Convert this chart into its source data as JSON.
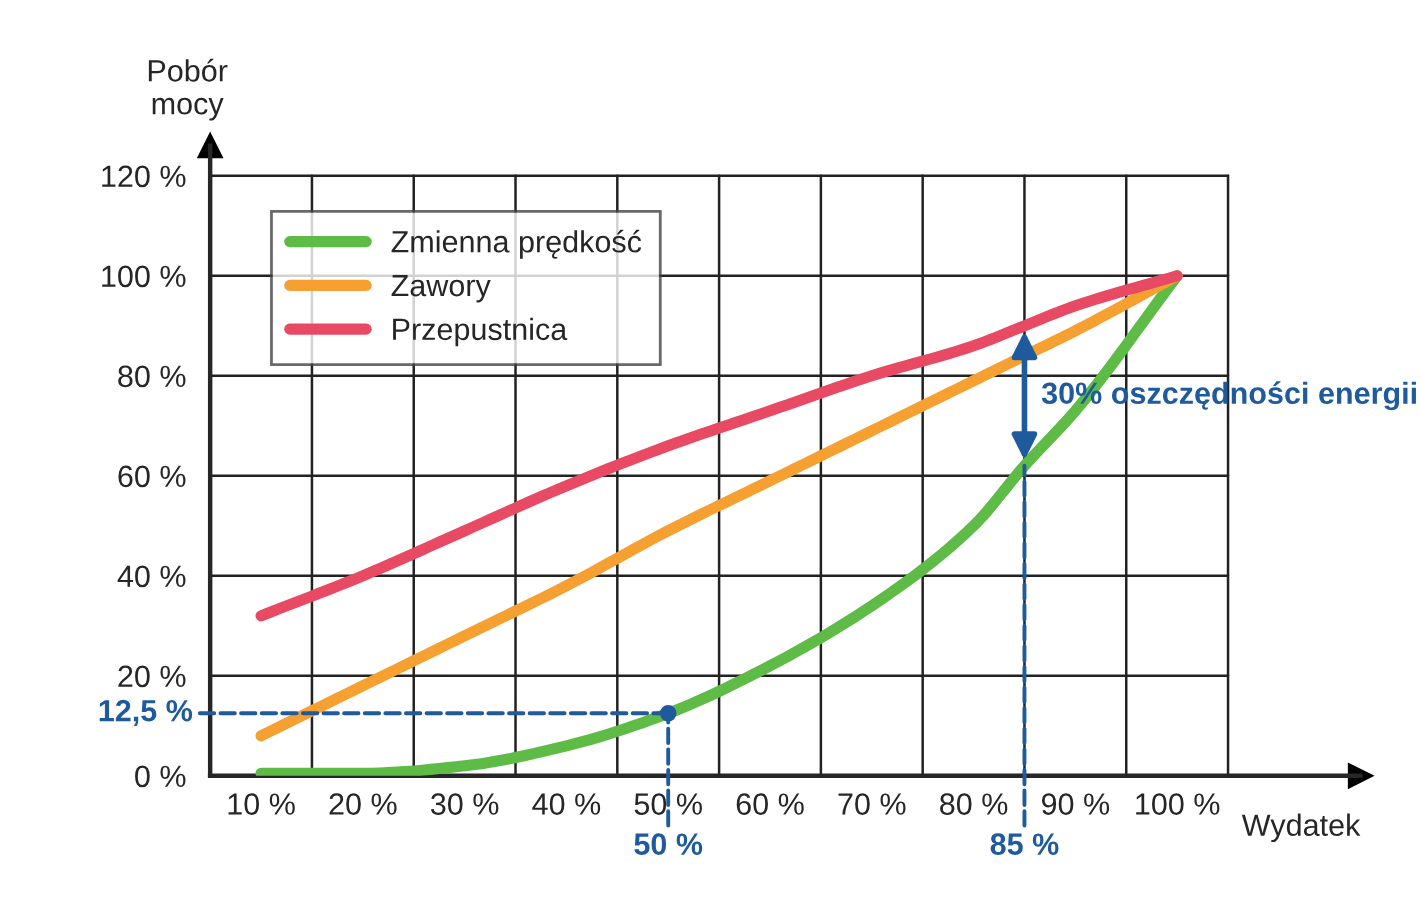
{
  "chart_data": {
    "type": "line",
    "xlabel": "Wydatek",
    "ylabel": "Pobór\nmocy",
    "x": [
      10,
      20,
      30,
      40,
      50,
      60,
      70,
      80,
      85,
      90,
      100
    ],
    "series": [
      {
        "name": "Zmienna prędkość",
        "color": "#5dbb46",
        "values": [
          0.5,
          0.5,
          2,
          6,
          12.5,
          22,
          34,
          50,
          62,
          73,
          100
        ]
      },
      {
        "name": "Zawory",
        "color": "#f7a032",
        "values": [
          8,
          18,
          28,
          38,
          49,
          59,
          69,
          79,
          84,
          89,
          100
        ]
      },
      {
        "name": "Przepustnica",
        "color": "#e84a64",
        "values": [
          32,
          40,
          49,
          58,
          66,
          73,
          80,
          86,
          90,
          94,
          100
        ]
      }
    ],
    "xlim": [
      5,
      118
    ],
    "xticks": [
      {
        "value": 10,
        "label": "10 %"
      },
      {
        "value": 20,
        "label": "20 %"
      },
      {
        "value": 30,
        "label": "30 %"
      },
      {
        "value": 40,
        "label": "40 %"
      },
      {
        "value": 50,
        "label": "50 %"
      },
      {
        "value": 60,
        "label": "60 %"
      },
      {
        "value": 70,
        "label": "70 %"
      },
      {
        "value": 80,
        "label": "80 %"
      },
      {
        "value": 90,
        "label": "90 %"
      },
      {
        "value": 100,
        "label": "100 %"
      },
      {
        "value": 15,
        "label": null
      },
      {
        "value": 25,
        "label": null
      },
      {
        "value": 35,
        "label": null
      },
      {
        "value": 45,
        "label": null
      },
      {
        "value": 55,
        "label": null
      },
      {
        "value": 65,
        "label": null
      },
      {
        "value": 75,
        "label": null
      },
      {
        "value": 85,
        "label": null
      },
      {
        "value": 95,
        "label": null
      },
      {
        "value": 105,
        "label": null
      }
    ],
    "ylim": [
      0,
      126
    ],
    "yticks": [
      {
        "value": 0,
        "label": "0 %"
      },
      {
        "value": 20,
        "label": "20 %"
      },
      {
        "value": 40,
        "label": "40 %"
      },
      {
        "value": 60,
        "label": "60 %"
      },
      {
        "value": 80,
        "label": "80 %"
      },
      {
        "value": 100,
        "label": "100 %"
      },
      {
        "value": 120,
        "label": "120 %"
      }
    ],
    "grid": true,
    "legend": "top left",
    "marker": "none",
    "line_style": "solid",
    "annotations": [
      "12,5 %",
      {
        "text": "50 %",
        "x": 50
      },
      {
        "text": "85 %",
        "x": 85
      },
      "30% oszczędności energii"
    ]
  }
}
